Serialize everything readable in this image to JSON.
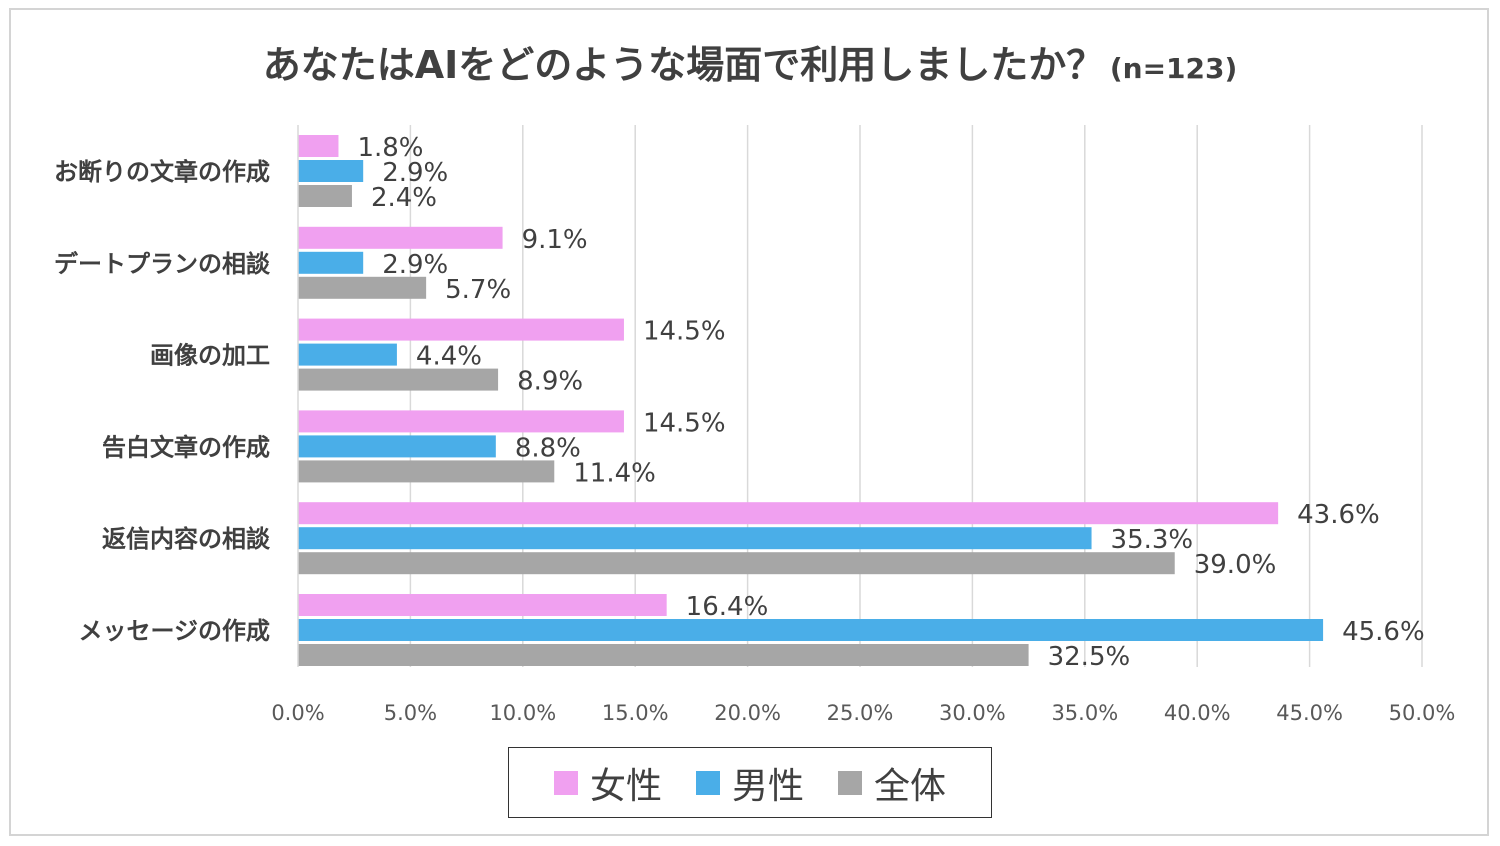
{
  "title": "あなたはAIをどのような場面で利用しましたか？",
  "subtitle": "(n=123)",
  "chart_data": {
    "type": "bar",
    "orientation": "horizontal",
    "categories": [
      "お断りの文章の作成",
      "デートプランの相談",
      "画像の加工",
      "告白文章の作成",
      "返信内容の相談",
      "メッセージの作成"
    ],
    "series": [
      {
        "name": "女性",
        "color": "#f0a0f0",
        "values": [
          1.8,
          9.1,
          14.5,
          14.5,
          43.6,
          16.4
        ]
      },
      {
        "name": "男性",
        "color": "#4aaee8",
        "values": [
          2.9,
          2.9,
          4.4,
          8.8,
          35.3,
          45.6
        ]
      },
      {
        "name": "全体",
        "color": "#a6a6a6",
        "values": [
          2.4,
          5.7,
          8.9,
          11.4,
          39.0,
          32.5
        ]
      }
    ],
    "xlim": [
      0,
      50
    ],
    "xticks": [
      "0.0%",
      "5.0%",
      "10.0%",
      "15.0%",
      "20.0%",
      "25.0%",
      "30.0%",
      "35.0%",
      "40.0%",
      "45.0%",
      "50.0%"
    ],
    "value_format": "%",
    "grid": "vertical",
    "legend": "bottom"
  }
}
